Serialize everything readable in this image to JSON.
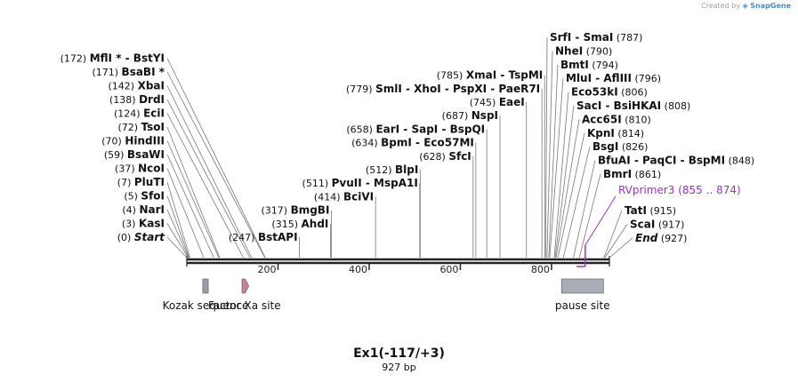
{
  "watermark": {
    "prefix": "Created by",
    "brand": "SnapGene"
  },
  "plasmid": {
    "name": "Ex1(-117/+3)",
    "size_label": "927 bp",
    "length": 927
  },
  "ruler": {
    "ticks": [
      "200",
      "400",
      "600",
      "800"
    ],
    "tick_values": [
      200,
      400,
      600,
      800
    ]
  },
  "sites_left": [
    {
      "pos": "(0)",
      "name": "Start",
      "italic": true,
      "bp": 0
    },
    {
      "pos": "(3)",
      "name": "KasI",
      "bp": 3
    },
    {
      "pos": "(4)",
      "name": "NarI",
      "bp": 4
    },
    {
      "pos": "(5)",
      "name": "SfoI",
      "bp": 5
    },
    {
      "pos": "(7)",
      "name": "PluTI",
      "bp": 7
    },
    {
      "pos": "(37)",
      "name": "NcoI",
      "bp": 37
    },
    {
      "pos": "(59)",
      "name": "BsaWI",
      "bp": 59
    },
    {
      "pos": "(70)",
      "name": "HindIII",
      "bp": 70
    },
    {
      "pos": "(72)",
      "name": "TsoI",
      "bp": 72
    },
    {
      "pos": "(124)",
      "name": "EciI",
      "bp": 124
    },
    {
      "pos": "(138)",
      "name": "DrdI",
      "bp": 138
    },
    {
      "pos": "(142)",
      "name": "XbaI",
      "bp": 142
    },
    {
      "pos": "(171)",
      "name": "BsaBI *",
      "bp": 171
    },
    {
      "pos": "(172)",
      "name": "MflI * - BstYI",
      "bp": 172
    }
  ],
  "sites_mid": [
    {
      "pos": "(247)",
      "name": "BstAPI",
      "bp": 247
    },
    {
      "pos": "(315)",
      "name": "AhdI",
      "bp": 315
    },
    {
      "pos": "(317)",
      "name": "BmgBI",
      "bp": 317
    },
    {
      "pos": "(414)",
      "name": "BciVI",
      "bp": 414
    },
    {
      "pos": "(511)",
      "name": "PvuII  - MspA1I",
      "bp": 511
    },
    {
      "pos": "(512)",
      "name": "BlpI",
      "bp": 512
    },
    {
      "pos": "(628)",
      "name": "SfcI",
      "bp": 628
    },
    {
      "pos": "(634)",
      "name": "BpmI - Eco57MI",
      "bp": 634
    },
    {
      "pos": "(658)",
      "name": "EarI - SapI - BspQI",
      "bp": 658
    },
    {
      "pos": "(687)",
      "name": "NspI",
      "bp": 687
    },
    {
      "pos": "(745)",
      "name": "EaeI",
      "bp": 745
    },
    {
      "pos": "(779)",
      "name": "SmlI  - XhoI - PspXI - PaeR7I",
      "bp": 779
    },
    {
      "pos": "(785)",
      "name": "XmaI - TspMI",
      "bp": 785
    }
  ],
  "sites_right": [
    {
      "name": "SrfI - SmaI",
      "pos": "(787)",
      "bp": 787
    },
    {
      "name": "NheI",
      "pos": "(790)",
      "bp": 790
    },
    {
      "name": "BmtI",
      "pos": "(794)",
      "bp": 794
    },
    {
      "name": "MluI - AflIII",
      "pos": "(796)",
      "bp": 796
    },
    {
      "name": "Eco53kI",
      "pos": "(806)",
      "bp": 806
    },
    {
      "name": "SacI - BsiHKAI",
      "pos": "(808)",
      "bp": 808
    },
    {
      "name": "Acc65I",
      "pos": "(810)",
      "bp": 810
    },
    {
      "name": "KpnI",
      "pos": "(814)",
      "bp": 814
    },
    {
      "name": "BsgI",
      "pos": "(826)",
      "bp": 826
    },
    {
      "name": "BfuAI - PaqCI - BspMI",
      "pos": "(848)",
      "bp": 848
    },
    {
      "name": "BmrI",
      "pos": "(861)",
      "bp": 861
    },
    {
      "name": "TatI",
      "pos": "(915)",
      "bp": 915
    },
    {
      "name": "ScaI",
      "pos": "(917)",
      "bp": 917
    },
    {
      "name": "End",
      "pos": "(927)",
      "italic": true,
      "bp": 927
    }
  ],
  "primer": {
    "name": "RVprimer3",
    "range": "(855 .. 874)",
    "start": 855,
    "end": 874,
    "color": "#9b30c9"
  },
  "features": [
    {
      "name": "Kozak sequence",
      "start": 35,
      "end": 47,
      "color": "#9a9ea8",
      "shape": "box"
    },
    {
      "name": "Factor Xa site",
      "start": 121,
      "end": 132,
      "color": "#c87f9e",
      "shape": "arrow"
    },
    {
      "name": "pause site",
      "start": 822,
      "end": 914,
      "color": "#a9adb5",
      "shape": "box"
    }
  ]
}
